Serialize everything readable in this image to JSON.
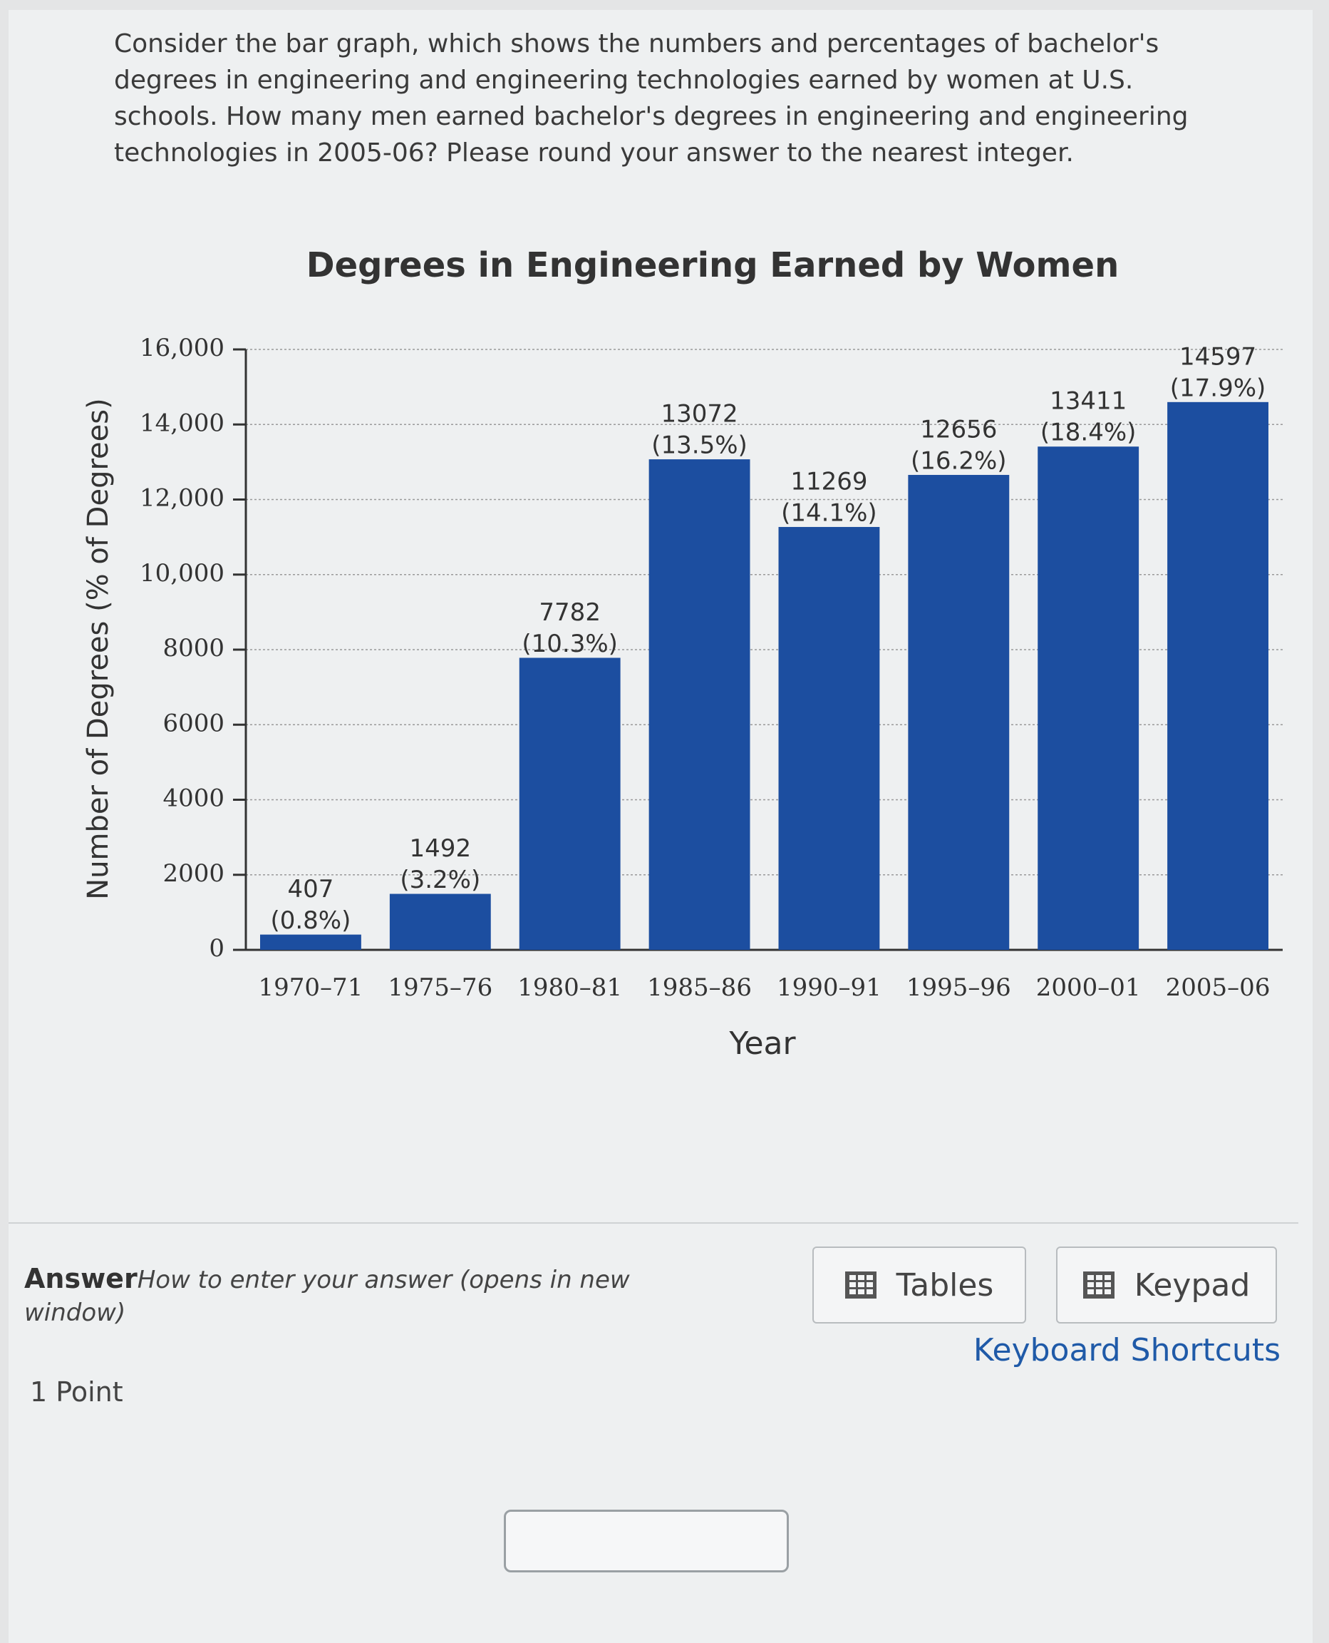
{
  "question": "Consider the bar graph, which shows the numbers and percentages of bachelor's degrees in engineering and engineering technologies earned by women at U.S. schools. How many men earned bachelor's degrees in engineering and engineering technologies in 2005-06? Please round your answer to the nearest integer.",
  "chart_data": {
    "type": "bar",
    "title": "Degrees in Engineering Earned by Women",
    "xlabel": "Year",
    "ylabel": "Number of Degrees (% of Degrees)",
    "categories": [
      "1970–71",
      "1975–76",
      "1980–81",
      "1985–86",
      "1990–91",
      "1995–96",
      "2000–01",
      "2005–06"
    ],
    "values": [
      407,
      1492,
      7782,
      13072,
      11269,
      12656,
      13411,
      14597
    ],
    "percent_labels": [
      "(0.8%)",
      "(3.2%)",
      "(10.3%)",
      "(13.5%)",
      "(14.1%)",
      "(16.2%)",
      "(18.4%)",
      "(17.9%)"
    ],
    "color": "#1c4ea0",
    "ylim": [
      0,
      16000
    ],
    "yticks": [
      0,
      2000,
      4000,
      6000,
      8000,
      {
        "value": 10000,
        "label": "10,000"
      },
      {
        "value": 12000,
        "label": "12,000"
      },
      {
        "value": 14000,
        "label": "14,000"
      },
      {
        "value": 16000,
        "label": "16,000"
      }
    ],
    "grid": true
  },
  "answer": {
    "label": "Answer",
    "help": "How to enter your answer (opens in new window)",
    "points": "1 Point",
    "buttons": [
      "Tables",
      "Keypad"
    ],
    "shortcuts": "Keyboard Shortcuts"
  }
}
